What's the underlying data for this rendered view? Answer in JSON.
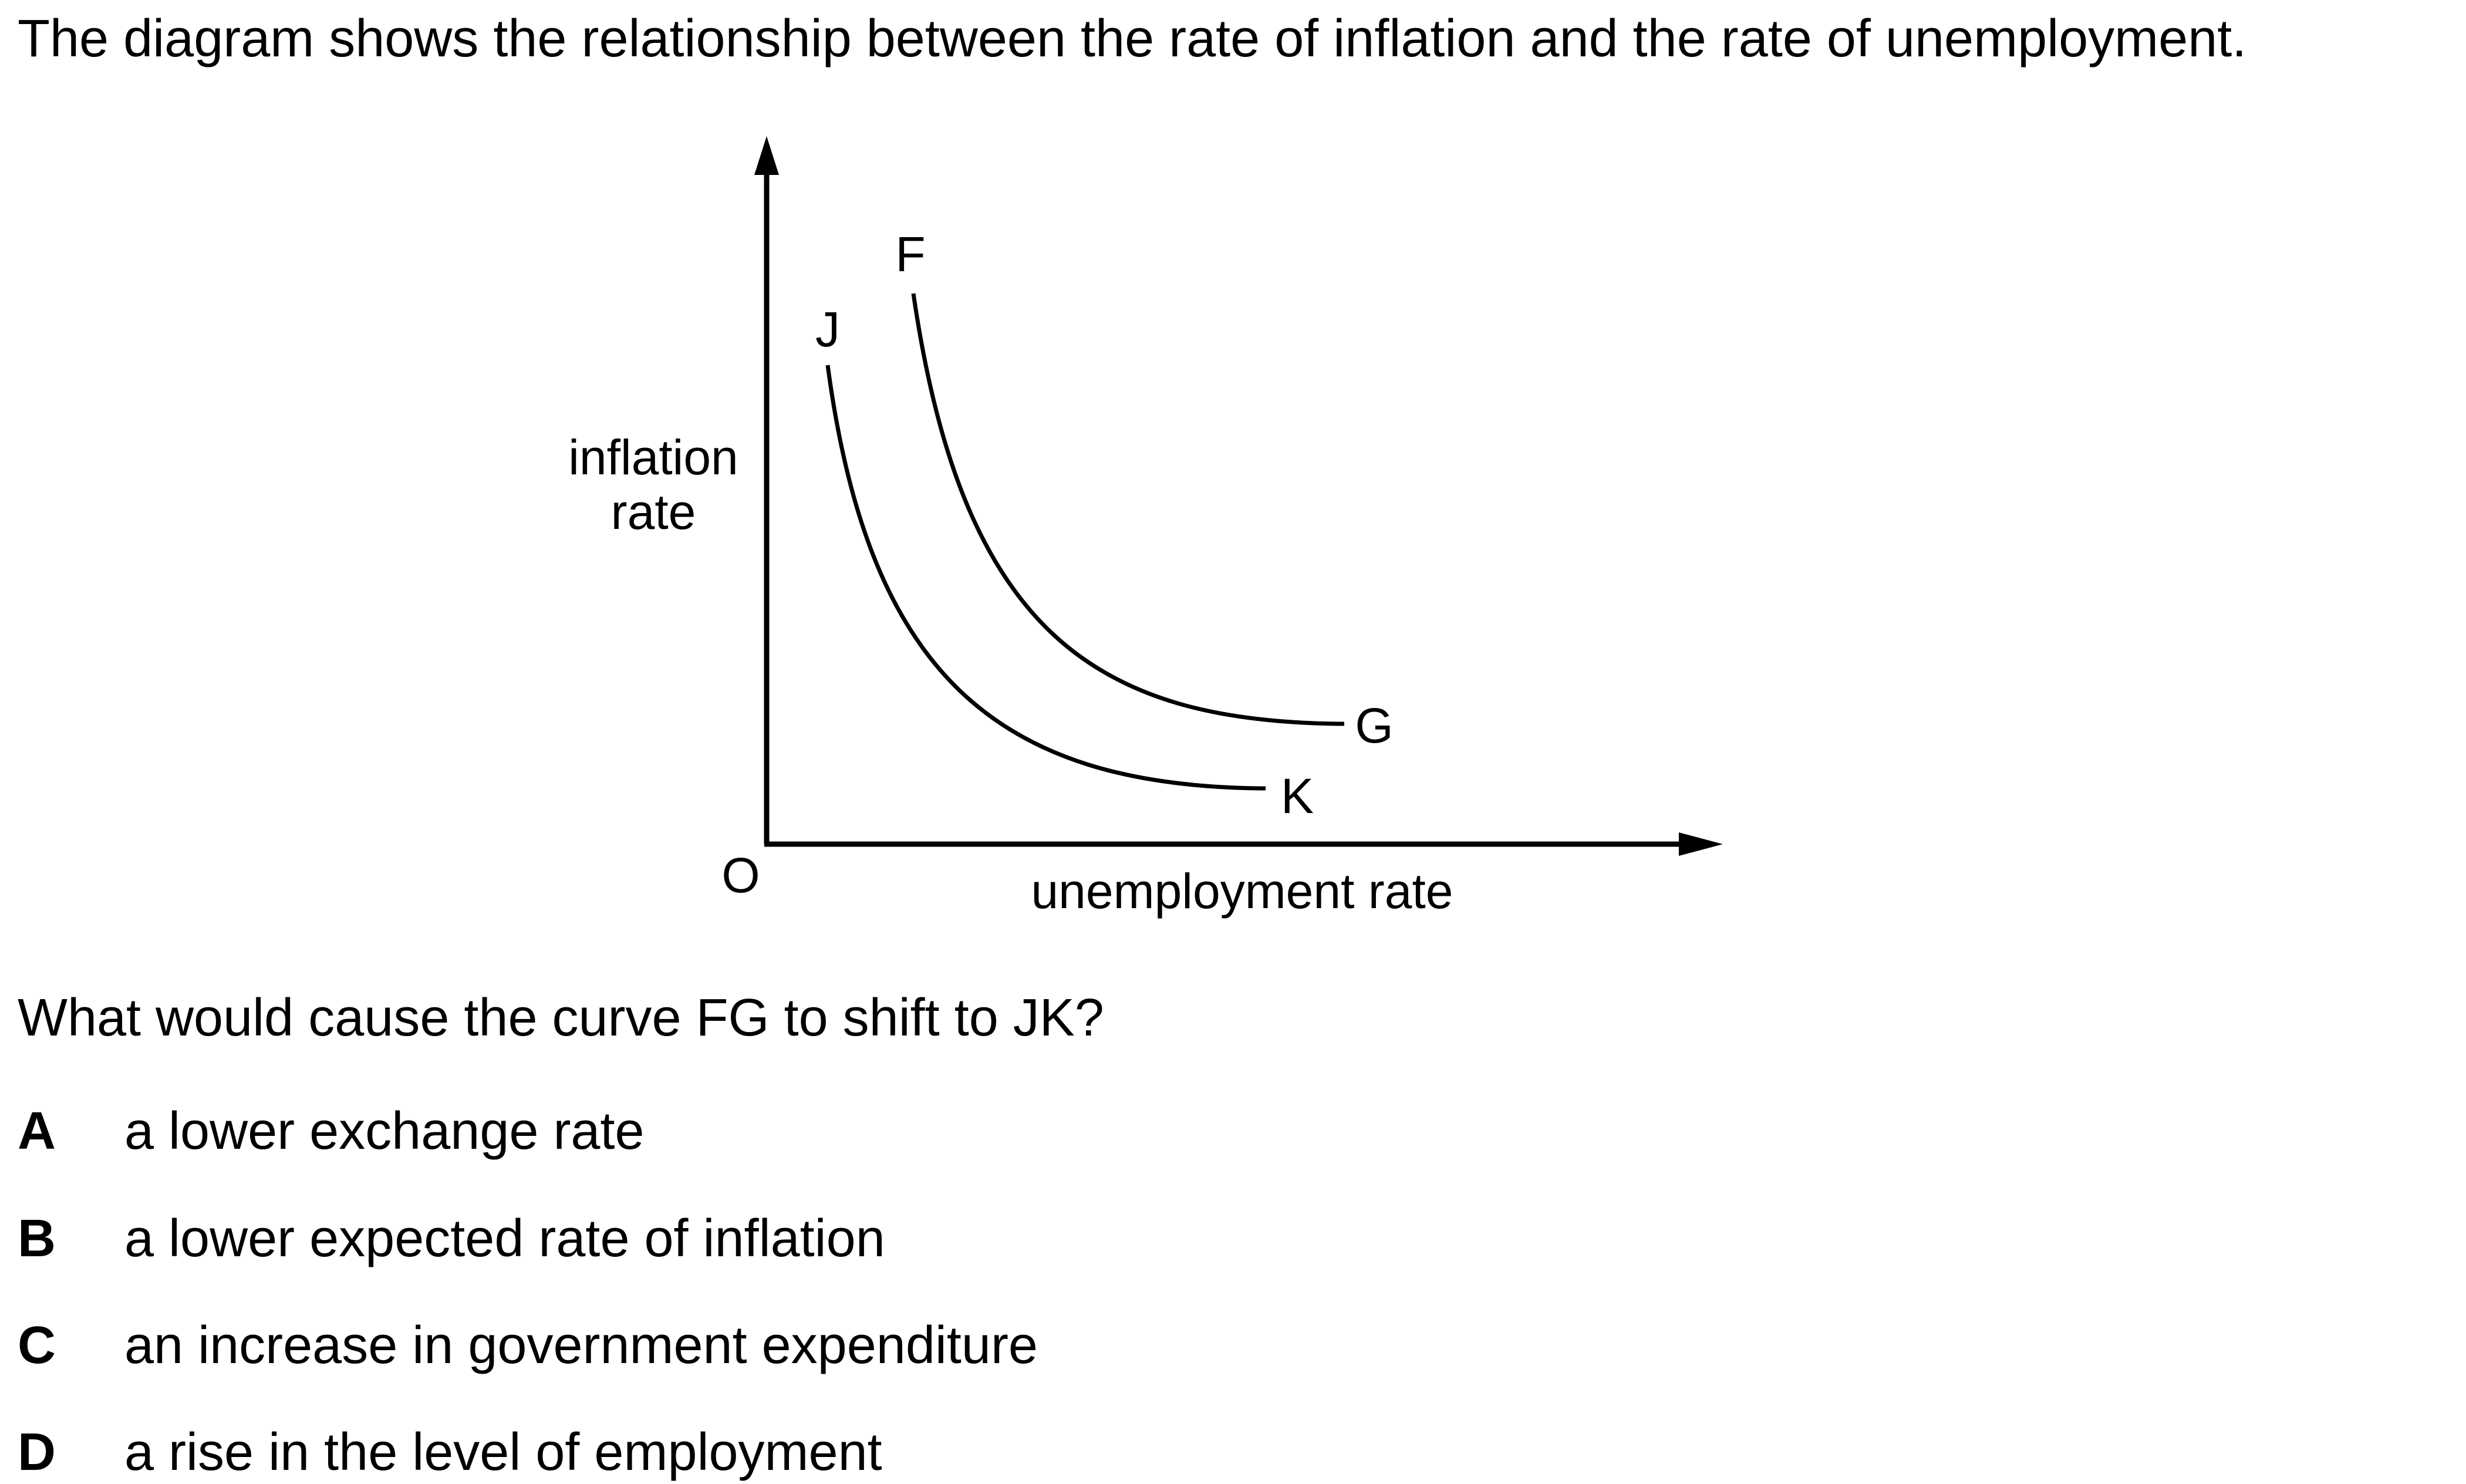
{
  "stem": "The diagram shows the relationship between the rate of inflation and the rate of unemployment.",
  "diagram": {
    "y_axis_label_line1": "inflation",
    "y_axis_label_line2": "rate",
    "x_axis_label": "unemployment rate",
    "origin_label": "O",
    "curve_fg": {
      "start_label": "F",
      "end_label": "G"
    },
    "curve_jk": {
      "start_label": "J",
      "end_label": "K"
    }
  },
  "question": "What would cause the curve FG to shift to JK?",
  "options": [
    {
      "letter": "A",
      "text": "a lower exchange rate"
    },
    {
      "letter": "B",
      "text": "a lower expected rate of inflation"
    },
    {
      "letter": "C",
      "text": "an increase in government expenditure"
    },
    {
      "letter": "D",
      "text": "a rise in the level of employment"
    }
  ]
}
